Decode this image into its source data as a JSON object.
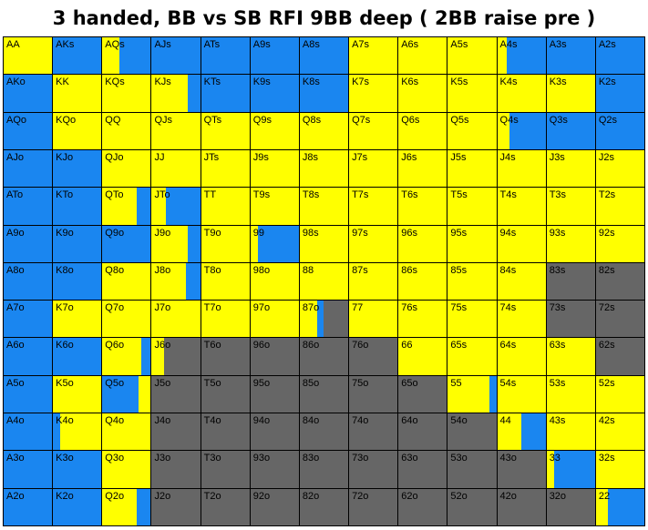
{
  "title": "3 handed, BB vs SB RFI 9BB deep ( 2BB raise pre )",
  "colors": {
    "Y": "#ffff00",
    "B": "#1a86f0",
    "G": "#666666"
  },
  "hands": [
    [
      "AA",
      "AKs",
      "AQs",
      "AJs",
      "ATs",
      "A9s",
      "A8s",
      "A7s",
      "A6s",
      "A5s",
      "A4s",
      "A3s",
      "A2s"
    ],
    [
      "AKo",
      "KK",
      "KQs",
      "KJs",
      "KTs",
      "K9s",
      "K8s",
      "K7s",
      "K6s",
      "K5s",
      "K4s",
      "K3s",
      "K2s"
    ],
    [
      "AQo",
      "KQo",
      "QQ",
      "QJs",
      "QTs",
      "Q9s",
      "Q8s",
      "Q7s",
      "Q6s",
      "Q5s",
      "Q4s",
      "Q3s",
      "Q2s"
    ],
    [
      "AJo",
      "KJo",
      "QJo",
      "JJ",
      "JTs",
      "J9s",
      "J8s",
      "J7s",
      "J6s",
      "J5s",
      "J4s",
      "J3s",
      "J2s"
    ],
    [
      "ATo",
      "KTo",
      "QTo",
      "JTo",
      "TT",
      "T9s",
      "T8s",
      "T7s",
      "T6s",
      "T5s",
      "T4s",
      "T3s",
      "T2s"
    ],
    [
      "A9o",
      "K9o",
      "Q9o",
      "J9o",
      "T9o",
      "99",
      "98s",
      "97s",
      "96s",
      "95s",
      "94s",
      "93s",
      "92s"
    ],
    [
      "A8o",
      "K8o",
      "Q8o",
      "J8o",
      "T8o",
      "98o",
      "88",
      "87s",
      "86s",
      "85s",
      "84s",
      "83s",
      "82s"
    ],
    [
      "A7o",
      "K7o",
      "Q7o",
      "J7o",
      "T7o",
      "97o",
      "87o",
      "77",
      "76s",
      "75s",
      "74s",
      "73s",
      "72s"
    ],
    [
      "A6o",
      "K6o",
      "Q6o",
      "J6o",
      "T6o",
      "96o",
      "86o",
      "76o",
      "66",
      "65s",
      "64s",
      "63s",
      "62s"
    ],
    [
      "A5o",
      "K5o",
      "Q5o",
      "J5o",
      "T5o",
      "95o",
      "85o",
      "75o",
      "65o",
      "55",
      "54s",
      "53s",
      "52s"
    ],
    [
      "A4o",
      "K4o",
      "Q4o",
      "J4o",
      "T4o",
      "94o",
      "84o",
      "74o",
      "64o",
      "54o",
      "44",
      "43s",
      "42s"
    ],
    [
      "A3o",
      "K3o",
      "Q3o",
      "J3o",
      "T3o",
      "93o",
      "83o",
      "73o",
      "63o",
      "53o",
      "43o",
      "33",
      "32s"
    ],
    [
      "A2o",
      "K2o",
      "Q2o",
      "J2o",
      "T2o",
      "92o",
      "82o",
      "72o",
      "62o",
      "52o",
      "42o",
      "32o",
      "22"
    ]
  ],
  "actions": [
    [
      "Y",
      "B",
      "Y:0.35,B:0.65",
      "B",
      "B",
      "B",
      "B",
      "Y",
      "Y",
      "Y",
      "Y:0.2,B:0.8",
      "B",
      "B"
    ],
    [
      "B",
      "Y",
      "Y",
      "Y:0.75,B:0.25",
      "B",
      "B",
      "B",
      "Y",
      "Y",
      "Y",
      "Y",
      "Y",
      "B"
    ],
    [
      "B",
      "Y",
      "Y",
      "Y",
      "Y",
      "Y",
      "Y",
      "Y",
      "Y",
      "Y",
      "Y:0.25,B:0.75",
      "B",
      "B"
    ],
    [
      "B",
      "B",
      "Y",
      "Y",
      "Y",
      "Y",
      "Y",
      "Y",
      "Y",
      "Y",
      "Y",
      "Y",
      "Y"
    ],
    [
      "B",
      "B",
      "Y:0.7,B:0.3",
      "Y:0.3,B:0.7",
      "Y",
      "Y",
      "Y",
      "Y",
      "Y",
      "Y",
      "Y",
      "Y",
      "Y"
    ],
    [
      "B",
      "B",
      "B",
      "Y:0.75,B:0.25",
      "Y",
      "Y:0.15,B:0.85",
      "Y",
      "Y",
      "Y",
      "Y",
      "Y",
      "Y",
      "Y"
    ],
    [
      "B",
      "B",
      "Y",
      "Y:0.7,B:0.3",
      "Y",
      "Y",
      "Y",
      "Y",
      "Y",
      "Y",
      "Y",
      "G",
      "G"
    ],
    [
      "B",
      "Y",
      "Y",
      "Y",
      "Y",
      "Y",
      "Y:0.35,B:0.15,G:0.5",
      "Y",
      "Y",
      "Y",
      "Y",
      "G",
      "G"
    ],
    [
      "B",
      "B",
      "Y:0.8,B:0.2",
      "Y:0.25,G:0.75",
      "G",
      "G",
      "G",
      "G",
      "Y",
      "Y",
      "Y",
      "Y",
      "G"
    ],
    [
      "B",
      "Y",
      "B:0.75,Y:0.25",
      "G",
      "G",
      "G",
      "G",
      "G",
      "G",
      "Y:0.85,B:0.15",
      "Y",
      "Y",
      "Y"
    ],
    [
      "B",
      "B:0.15,Y:0.85",
      "Y",
      "G",
      "G",
      "G",
      "G",
      "G",
      "G",
      "G",
      "Y:0.5,B:0.5",
      "Y",
      "Y"
    ],
    [
      "B",
      "B",
      "Y",
      "G",
      "G",
      "G",
      "G",
      "G",
      "G",
      "G",
      "G",
      "Y:0.15,B:0.85",
      "Y"
    ],
    [
      "B",
      "B",
      "Y:0.7,B:0.3",
      "G",
      "G",
      "G",
      "G",
      "G",
      "G",
      "G",
      "G",
      "G",
      "Y:0.25,B:0.75"
    ]
  ]
}
